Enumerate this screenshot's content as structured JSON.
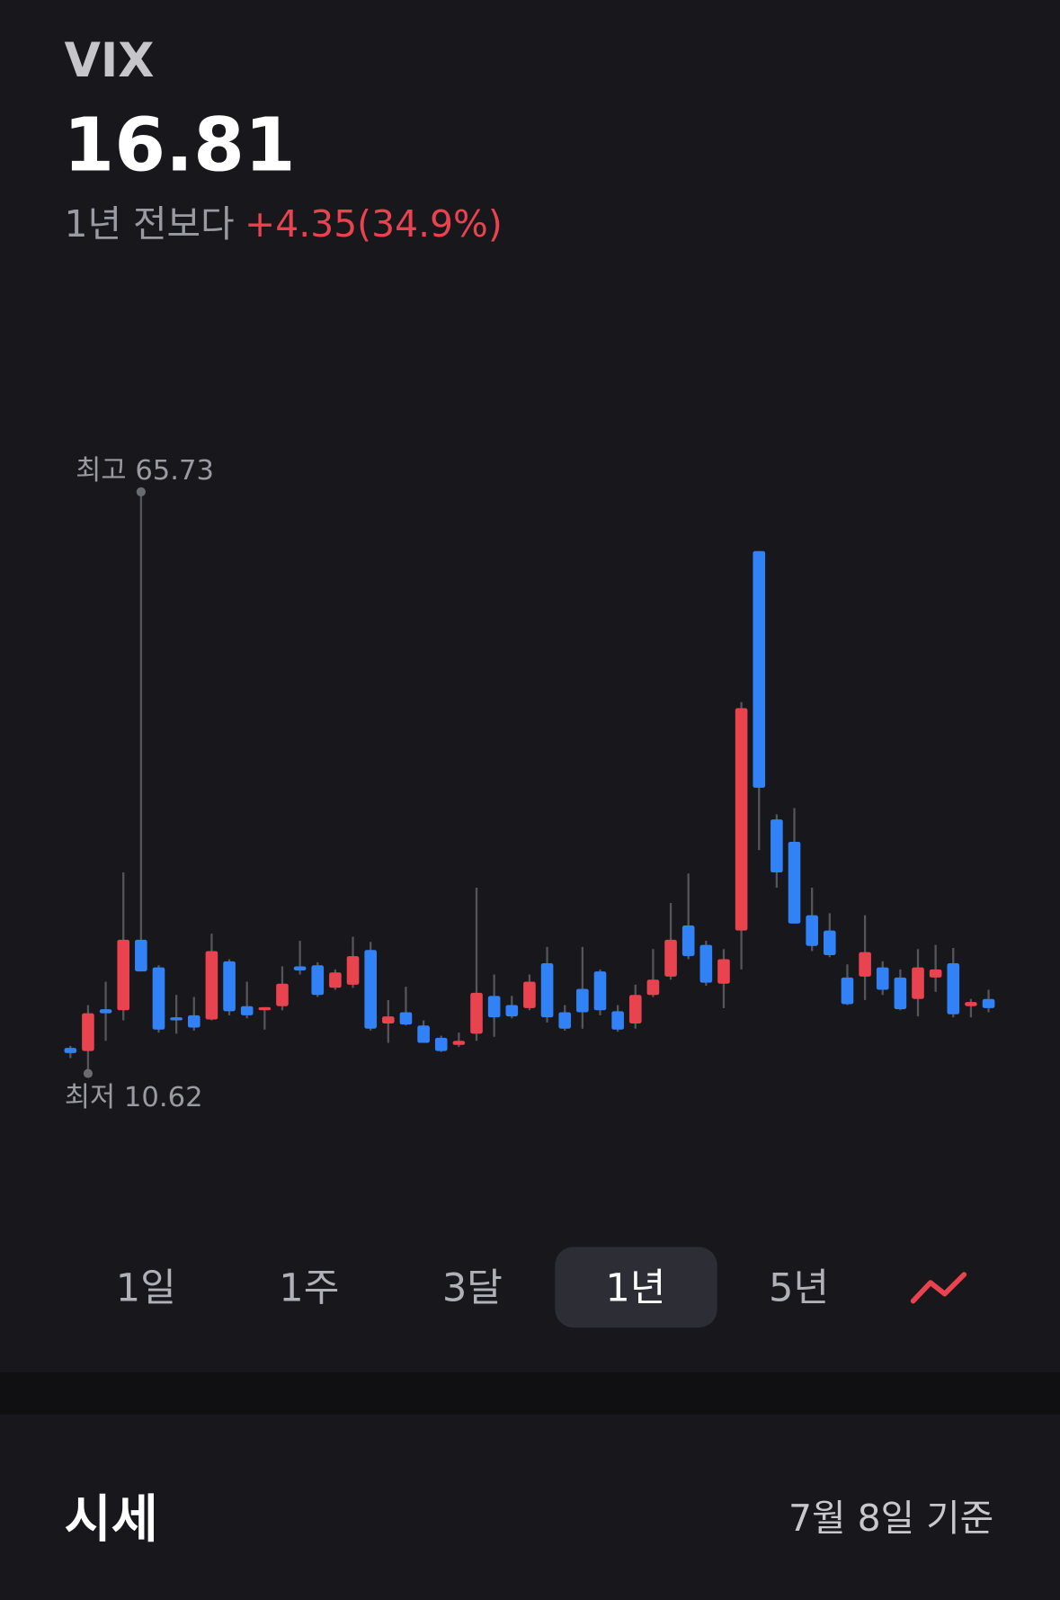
{
  "header": {
    "symbol": "VIX",
    "price": "16.81",
    "change_prefix": "1년 전보다",
    "change": "+4.35(34.9%)"
  },
  "chart_data": {
    "type": "candlestick",
    "up_color": "#e8434f",
    "down_color": "#3182f6",
    "wick_color": "#55565c",
    "high_label": "최고 65.73",
    "low_label": "최저 10.62",
    "open": [
      13.04,
      12.75,
      16.71,
      16.61,
      23.29,
      20.67,
      15.94,
      16.13,
      15.74,
      21.25,
      17.0,
      16.61,
      17.0,
      20.77,
      20.87,
      18.74,
      19.03,
      22.32,
      15.36,
      16.42,
      15.16,
      14.0,
      13.33,
      14.39,
      17.97,
      17.1,
      16.81,
      21.06,
      16.42,
      18.64,
      20.29,
      16.52,
      15.36,
      18.06,
      19.8,
      24.64,
      22.8,
      19.13,
      24.16,
      60.12,
      34.69,
      32.57,
      25.61,
      24.16,
      19.71,
      19.8,
      20.67,
      19.71,
      17.68,
      19.71,
      21.06,
      17.0,
      17.68
    ],
    "high": [
      13.23,
      17.1,
      19.32,
      29.67,
      65.73,
      20.87,
      18.06,
      17.87,
      23.87,
      21.45,
      19.32,
      16.9,
      20.77,
      23.19,
      21.16,
      20.48,
      23.58,
      23.09,
      17.58,
      18.84,
      15.65,
      14.2,
      14.49,
      28.22,
      20.0,
      17.97,
      20.0,
      22.61,
      17.1,
      22.61,
      20.48,
      17.1,
      19.03,
      22.41,
      26.77,
      29.57,
      23.19,
      22.41,
      45.81,
      60.12,
      35.18,
      35.76,
      28.22,
      25.8,
      20.96,
      25.61,
      21.25,
      20.48,
      22.41,
      22.8,
      22.51,
      17.68,
      18.55
    ],
    "low": [
      12.07,
      10.62,
      13.71,
      15.65,
      20.29,
      14.49,
      14.39,
      14.68,
      15.65,
      16.13,
      15.84,
      14.78,
      16.61,
      20.0,
      17.87,
      18.55,
      18.74,
      14.68,
      13.52,
      15.16,
      13.52,
      12.65,
      13.13,
      13.71,
      14.1,
      15.84,
      16.61,
      15.45,
      14.68,
      14.87,
      16.13,
      14.58,
      14.87,
      17.87,
      19.51,
      21.45,
      18.93,
      16.81,
      20.48,
      31.79,
      28.22,
      24.83,
      22.22,
      21.64,
      17.1,
      17.58,
      18.06,
      16.61,
      16.03,
      18.35,
      15.94,
      15.94,
      16.42
    ],
    "close": [
      12.55,
      16.32,
      16.32,
      23.29,
      20.29,
      14.78,
      15.65,
      14.97,
      22.22,
      16.52,
      16.13,
      16.9,
      19.13,
      20.38,
      18.06,
      20.19,
      21.74,
      14.87,
      16.03,
      15.26,
      13.52,
      12.75,
      13.71,
      18.26,
      15.94,
      16.03,
      19.32,
      15.94,
      14.87,
      16.42,
      16.61,
      14.78,
      18.06,
      19.51,
      23.29,
      21.74,
      19.22,
      21.45,
      45.23,
      37.69,
      29.67,
      24.83,
      22.71,
      21.83,
      17.19,
      22.12,
      18.55,
      16.71,
      20.67,
      20.48,
      16.23,
      17.39,
      16.81
    ]
  },
  "tabs": [
    {
      "label": "1일"
    },
    {
      "label": "1주"
    },
    {
      "label": "3달"
    },
    {
      "label": "1년",
      "selected": true
    },
    {
      "label": "5년"
    }
  ],
  "section": {
    "title": "시세",
    "date": "7월 8일 기준"
  }
}
